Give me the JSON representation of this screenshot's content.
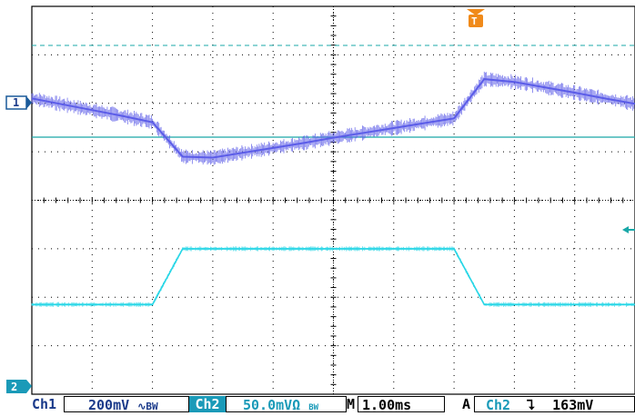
{
  "scope": {
    "channel_markers": [
      "1",
      "2"
    ],
    "trigger_marker": "T",
    "colors": {
      "ch1": "#5b5ce8",
      "ch2": "#27d6e6",
      "ref_line": "#19a8a8",
      "grid": "#000000",
      "marker_bg": "#1a9ab8",
      "trigger": "#f08a1a"
    }
  },
  "status": {
    "ch1_label": "Ch1",
    "ch1_scale": "200mV",
    "ch1_bw": "∿BW",
    "ch2_label": "Ch2",
    "ch2_scale": "50.0mVΩ",
    "ch2_bw": "BW",
    "timebase_prefix": "M",
    "timebase": "1.00ms",
    "trigger_mode": "A",
    "trigger_source": "Ch2",
    "trigger_slope_icon": "falling-edge",
    "trigger_level": "163mV"
  },
  "chart_data": {
    "type": "line",
    "x_divisions": 10,
    "y_divisions": 8,
    "series": [
      {
        "x": [
          0,
          0.5,
          1,
          1.5,
          2,
          2.5,
          3,
          3.5,
          4,
          4.5,
          5,
          5.5,
          6,
          6.5,
          7,
          7.5,
          8,
          8.5,
          9,
          9.5,
          10
        ],
        "y": [
          6.1,
          5.98,
          5.86,
          5.74,
          5.61,
          4.9,
          4.88,
          4.98,
          5.08,
          5.18,
          5.29,
          5.39,
          5.49,
          5.59,
          5.69,
          6.5,
          6.44,
          6.33,
          6.22,
          6.1,
          5.99
        ]
      },
      {
        "x": [
          0,
          0.5,
          1,
          1.5,
          2,
          2.5,
          3,
          3.5,
          4,
          4.5,
          5,
          5.5,
          6,
          6.5,
          7,
          7.5,
          8,
          8.5,
          9,
          9.5,
          10
        ],
        "y": [
          1.85,
          1.85,
          1.85,
          1.85,
          1.85,
          3.0,
          3.0,
          3.0,
          3.0,
          3.0,
          3.0,
          3.0,
          3.0,
          3.0,
          3.0,
          1.85,
          1.85,
          1.85,
          1.85,
          1.85,
          1.85
        ]
      }
    ]
  }
}
